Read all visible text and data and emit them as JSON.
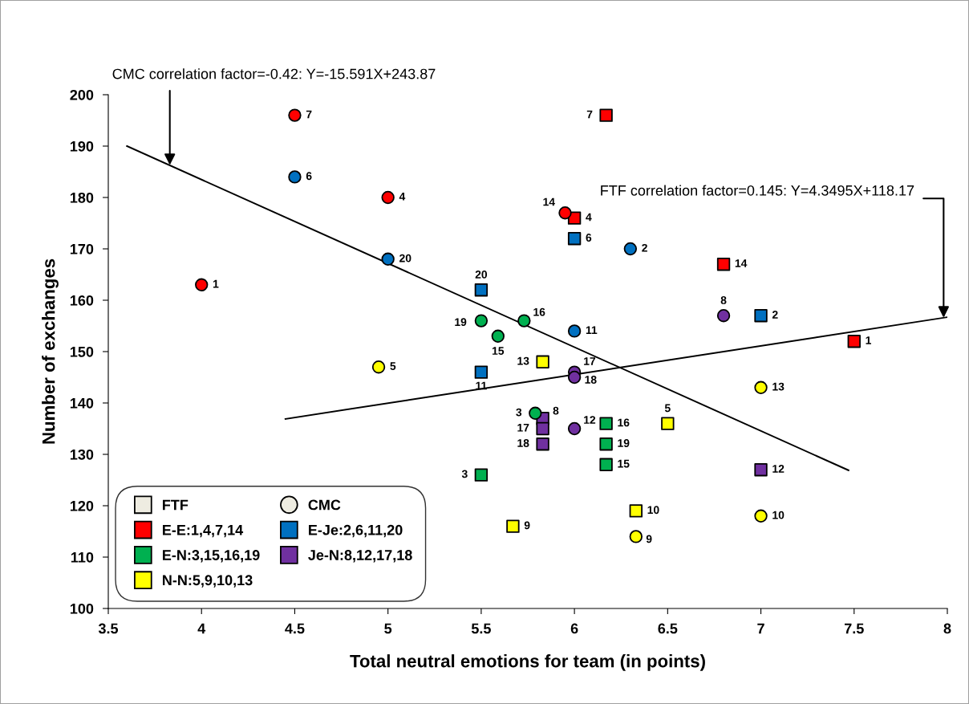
{
  "chart_data": {
    "type": "scatter",
    "xlabel": "Total neutral emotions for team (in points)",
    "ylabel": "Number of exchanges",
    "xlim": [
      3.5,
      8
    ],
    "xticks": [
      3.5,
      4,
      4.5,
      5,
      5.5,
      6,
      6.5,
      7,
      7.5,
      8
    ],
    "ylim": [
      100,
      200
    ],
    "yticks": [
      100,
      110,
      120,
      130,
      140,
      150,
      160,
      170,
      180,
      190,
      200
    ],
    "grid": false,
    "legend": "bottom left",
    "annotations": [
      {
        "text": "CMC correlation factor=-0.42: Y=-15.591X+243.87",
        "x": 3.83,
        "y": 186.3
      },
      {
        "text": "FTF correlation factor=0.145: Y=4.3495X+118.17",
        "x": 7.98,
        "y": 156.6
      },
      {
        "text": "1",
        "x": 7.5,
        "y": 152
      },
      {
        "text": "4",
        "x": 6,
        "y": 176
      },
      {
        "text": "7",
        "x": 6.17,
        "y": 196
      },
      {
        "text": "14",
        "x": 6.8,
        "y": 167
      },
      {
        "text": "2",
        "x": 7,
        "y": 157
      },
      {
        "text": "6",
        "x": 6,
        "y": 172
      },
      {
        "text": "11",
        "x": 5.5,
        "y": 146
      },
      {
        "text": "20",
        "x": 5.5,
        "y": 162
      },
      {
        "text": "3",
        "x": 5.5,
        "y": 126
      },
      {
        "text": "15",
        "x": 6.17,
        "y": 128
      },
      {
        "text": "16",
        "x": 6.17,
        "y": 136
      },
      {
        "text": "19",
        "x": 6.17,
        "y": 132
      },
      {
        "text": "8",
        "x": 5.83,
        "y": 137
      },
      {
        "text": "12",
        "x": 7,
        "y": 127
      },
      {
        "text": "17",
        "x": 5.83,
        "y": 135
      },
      {
        "text": "18",
        "x": 5.83,
        "y": 132
      },
      {
        "text": "5",
        "x": 6.5,
        "y": 136
      },
      {
        "text": "9",
        "x": 5.67,
        "y": 116
      },
      {
        "text": "10",
        "x": 6.33,
        "y": 119
      },
      {
        "text": "13",
        "x": 5.83,
        "y": 148
      },
      {
        "text": "1",
        "x": 4,
        "y": 163
      },
      {
        "text": "4",
        "x": 5,
        "y": 180
      },
      {
        "text": "7",
        "x": 4.5,
        "y": 196
      },
      {
        "text": "14",
        "x": 5.95,
        "y": 177
      },
      {
        "text": "2",
        "x": 6.3,
        "y": 170
      },
      {
        "text": "6",
        "x": 4.5,
        "y": 184
      },
      {
        "text": "11",
        "x": 6,
        "y": 154
      },
      {
        "text": "20",
        "x": 5,
        "y": 168
      },
      {
        "text": "3",
        "x": 5.79,
        "y": 138
      },
      {
        "text": "15",
        "x": 5.59,
        "y": 153
      },
      {
        "text": "16",
        "x": 5.73,
        "y": 156
      },
      {
        "text": "19",
        "x": 5.5,
        "y": 156
      },
      {
        "text": "8",
        "x": 6.8,
        "y": 157
      },
      {
        "text": "12",
        "x": 6,
        "y": 135
      },
      {
        "text": "17",
        "x": 6,
        "y": 146
      },
      {
        "text": "18",
        "x": 6,
        "y": 145
      },
      {
        "text": "5",
        "x": 4.95,
        "y": 147
      },
      {
        "text": "9",
        "x": 6.33,
        "y": 114
      },
      {
        "text": "10",
        "x": 7,
        "y": 118
      },
      {
        "text": "13",
        "x": 7,
        "y": 143
      }
    ],
    "series": [
      {
        "name": "FTF",
        "marker": "square",
        "color": "#eeece1"
      },
      {
        "name": "CMC",
        "marker": "circle",
        "color": "#eeece1"
      },
      {
        "name": "E-E:1,4,7,14",
        "marker": "square",
        "color": "#ff0000",
        "x": [
          7.5,
          6,
          6.17,
          6.8
        ],
        "values": [
          152,
          176,
          196,
          167
        ]
      },
      {
        "name": "E-Je:2,6,11,20",
        "marker": "square",
        "color": "#0070c0",
        "x": [
          7,
          6,
          5.5,
          5.5
        ],
        "values": [
          157,
          172,
          146,
          162
        ]
      },
      {
        "name": "E-N:3,15,16,19",
        "marker": "square",
        "color": "#00b050",
        "x": [
          5.5,
          6.17,
          6.17,
          6.17
        ],
        "values": [
          126,
          128,
          136,
          132
        ]
      },
      {
        "name": "Je-N:8,12,17,18",
        "marker": "square",
        "color": "#7030a0",
        "x": [
          5.83,
          7,
          5.83,
          5.83
        ],
        "values": [
          137,
          127,
          135,
          132
        ]
      },
      {
        "name": "N-N:5,9,10,13",
        "marker": "square",
        "color": "#ffff00",
        "x": [
          6.5,
          5.67,
          6.33,
          5.83
        ],
        "values": [
          136,
          116,
          119,
          148
        ]
      },
      {
        "marker": "circle",
        "color": "#ff0000",
        "x": [
          4,
          5,
          4.5,
          5.95
        ],
        "values": [
          163,
          180,
          196,
          177
        ]
      },
      {
        "marker": "circle",
        "color": "#0070c0",
        "x": [
          6.3,
          4.5,
          6,
          5
        ],
        "values": [
          170,
          184,
          154,
          168
        ]
      },
      {
        "marker": "circle",
        "color": "#00b050",
        "x": [
          5.79,
          5.59,
          5.73,
          5.5
        ],
        "values": [
          138,
          153,
          156,
          156
        ]
      },
      {
        "marker": "circle",
        "color": "#7030a0",
        "x": [
          6.8,
          6,
          6,
          6
        ],
        "values": [
          157,
          135,
          146,
          145
        ]
      },
      {
        "marker": "circle",
        "color": "#ffff00",
        "x": [
          4.95,
          6.33,
          7,
          7
        ],
        "values": [
          147,
          114,
          118,
          143
        ]
      },
      {
        "type": "line",
        "color": "#000000",
        "x": [
          3.6,
          7.47
        ],
        "values": [
          190,
          126.9
        ]
      },
      {
        "type": "line",
        "color": "#000000",
        "x": [
          4.45,
          8
        ],
        "values": [
          136.9,
          156.7
        ]
      }
    ]
  }
}
